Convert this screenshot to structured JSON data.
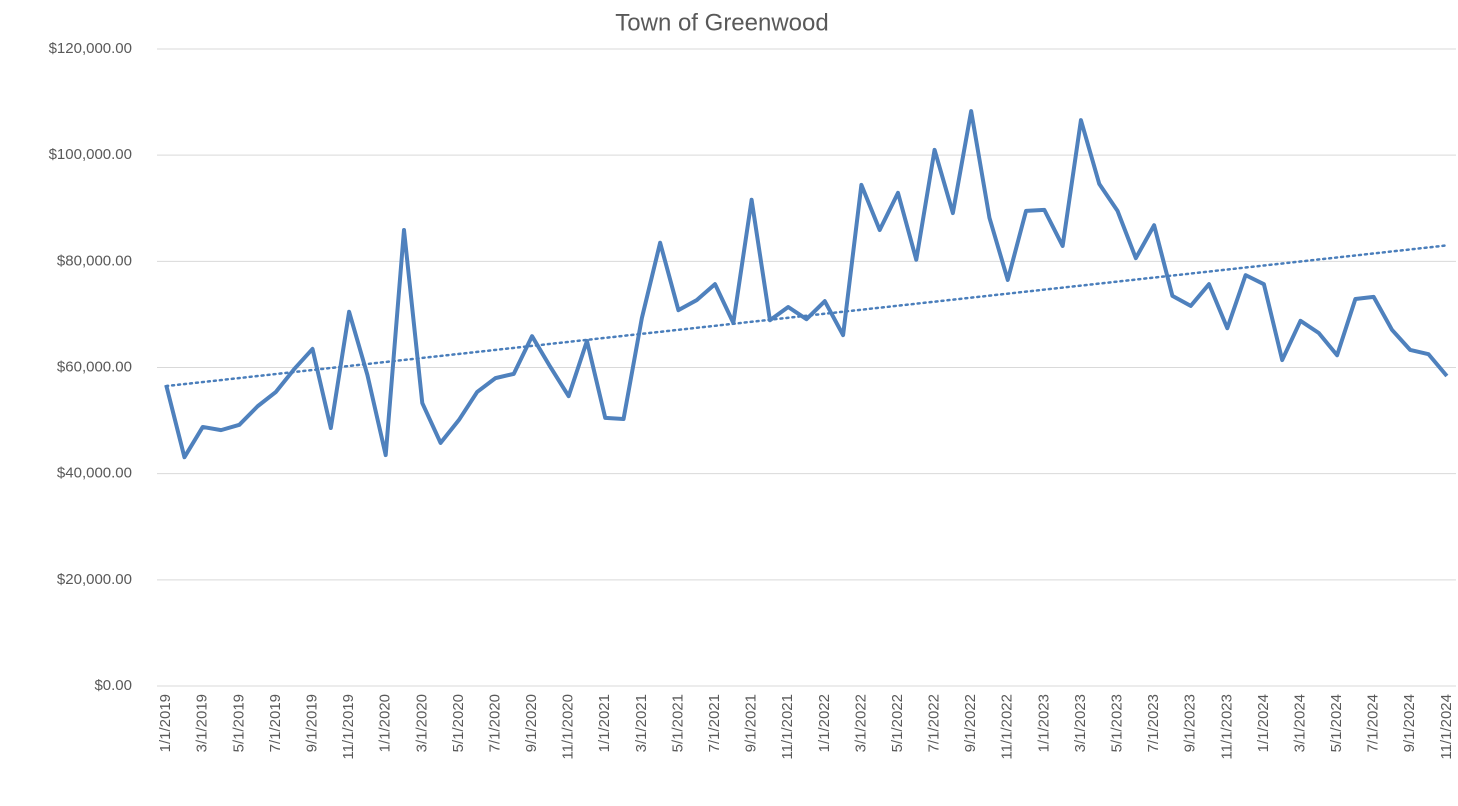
{
  "chart_data": {
    "type": "line",
    "title": "Town of Greenwood",
    "categories": [
      "1/1/2019",
      null,
      "3/1/2019",
      null,
      "5/1/2019",
      null,
      "7/1/2019",
      null,
      "9/1/2019",
      null,
      "11/1/2019",
      null,
      "1/1/2020",
      null,
      "3/1/2020",
      null,
      "5/1/2020",
      null,
      "7/1/2020",
      null,
      "9/1/2020",
      null,
      "11/1/2020",
      null,
      "1/1/2021",
      null,
      "3/1/2021",
      null,
      "5/1/2021",
      null,
      "7/1/2021",
      null,
      "9/1/2021",
      null,
      "11/1/2021",
      null,
      "1/1/2022",
      null,
      "3/1/2022",
      null,
      "5/1/2022",
      null,
      "7/1/2022",
      null,
      "9/1/2022",
      null,
      "11/1/2022",
      null,
      "1/1/2023",
      null,
      "3/1/2023",
      null,
      "5/1/2023",
      null,
      "7/1/2023",
      null,
      "9/1/2023",
      null,
      "11/1/2023",
      null,
      "1/1/2024",
      null,
      "3/1/2024",
      null,
      "5/1/2024",
      null,
      "7/1/2024",
      null,
      "9/1/2024",
      null,
      "11/1/2024"
    ],
    "series": [
      {
        "color": "#4f81bd",
        "values": [
          56700,
          43100,
          48800,
          48200,
          49200,
          52700,
          55400,
          59700,
          63500,
          48600,
          70500,
          58600,
          43500,
          85900,
          53300,
          45800,
          50100,
          55400,
          58000,
          58800,
          65900,
          60100,
          54600,
          65000,
          50500,
          50300,
          69300,
          83500,
          70800,
          72700,
          75700,
          68400,
          91600,
          68900,
          71400,
          69100,
          72500,
          66100,
          94400,
          85900,
          92900,
          80300,
          101000,
          89100,
          108300,
          88200,
          76500,
          89500,
          89700,
          82900,
          106600,
          94600,
          89500,
          80600,
          86800,
          73500,
          71600,
          75700,
          67400,
          77400,
          75700,
          61400,
          68800,
          66500,
          62300,
          72900,
          73300,
          67100,
          63300,
          62500,
          58400
        ]
      }
    ],
    "trendline": {
      "values": [
        56500,
        83000
      ],
      "color": "#4a7ebb",
      "style": "dotted"
    },
    "ylim": [
      0,
      120000
    ],
    "yticks": [
      {
        "value": 0,
        "label": "$0.00"
      },
      {
        "value": 20000,
        "label": "$20,000.00"
      },
      {
        "value": 40000,
        "label": "$40,000.00"
      },
      {
        "value": 60000,
        "label": "$60,000.00"
      },
      {
        "value": 80000,
        "label": "$80,000.00"
      },
      {
        "value": 100000,
        "label": "$100,000.00"
      },
      {
        "value": 120000,
        "label": "$120,000.00"
      }
    ],
    "grid": true
  }
}
